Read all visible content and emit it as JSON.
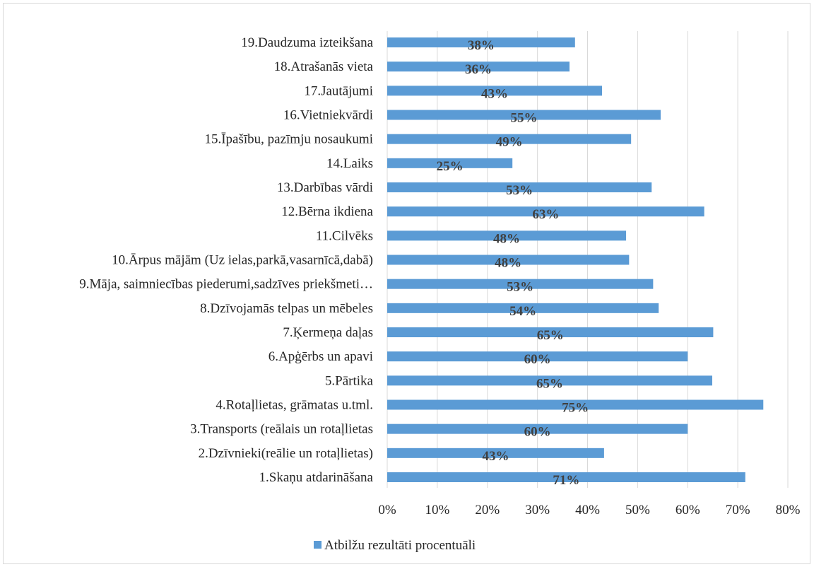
{
  "chart_data": {
    "type": "bar",
    "orientation": "horizontal",
    "categories": [
      "1.Skaņu atdarināšana",
      "2.Dzīvnieki(reālie un rotaļlietas)",
      "3.Transports (reālais un rotaļlietas",
      "4.Rotaļlietas, grāmatas u.tml.",
      "5.Pārtika",
      "6.Apģērbs un apavi",
      "7.Ķermeņa daļas",
      "8.Dzīvojamās telpas un mēbeles",
      "9.Māja, saimniecības piederumi,sadzīves priekšmeti…",
      "10.Ārpus mājām (Uz ielas,parkā,vasarnīcā,dabā)",
      "11.Cilvēks",
      "12.Bērna ikdiena",
      "13.Darbības vārdi",
      "14.Laiks",
      "15.Īpašību, pazīmju nosaukumi",
      "16.Vietniekvārdi",
      "17.Jautājumi",
      "18.Atrašanās vieta",
      "19.Daudzuma izteikšana"
    ],
    "series": [
      {
        "name": "Atbilžu rezultāti procentuāli",
        "values": [
          0.715,
          0.433,
          0.6,
          0.751,
          0.649,
          0.6,
          0.651,
          0.542,
          0.531,
          0.483,
          0.477,
          0.633,
          0.528,
          0.25,
          0.487,
          0.546,
          0.429,
          0.364,
          0.375
        ],
        "labels": [
          "71%",
          "43%",
          "60%",
          "75%",
          "65%",
          "60%",
          "65%",
          "54%",
          "53%",
          "48%",
          "48%",
          "63%",
          "53%",
          "25%",
          "49%",
          "55%",
          "43%",
          "36%",
          "38%"
        ],
        "color": "#5b9bd5"
      }
    ],
    "xlim": [
      0,
      0.8
    ],
    "xticks": [
      0,
      0.1,
      0.2,
      0.3,
      0.4,
      0.5,
      0.6,
      0.7,
      0.8
    ],
    "xtick_labels": [
      "0%",
      "10%",
      "20%",
      "30%",
      "40%",
      "50%",
      "60%",
      "70%",
      "80%"
    ],
    "grid": true,
    "legend": "bottom",
    "title": "",
    "xlabel": "",
    "ylabel": ""
  },
  "colors": {
    "bar": "#5b9bd5",
    "grid": "#d9d9d9",
    "text": "#262626",
    "data_label": "#404040"
  }
}
